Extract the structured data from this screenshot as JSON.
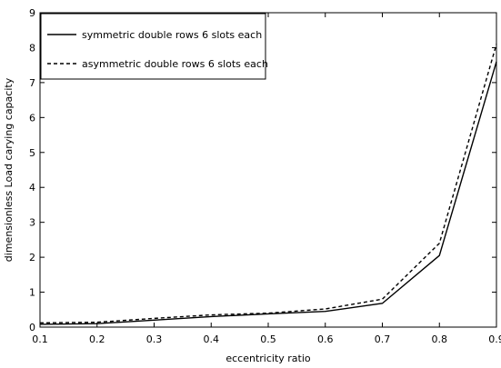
{
  "chart_data": {
    "type": "line",
    "title": "",
    "xlabel": "eccentricity ratio",
    "ylabel": "dimensionless Load carying capacity",
    "xlim": [
      0.1,
      0.9
    ],
    "ylim": [
      0,
      9
    ],
    "xticks": [
      "0.1",
      "0.2",
      "0.3",
      "0.4",
      "0.5",
      "0.6",
      "0.7",
      "0.8",
      "0.9"
    ],
    "yticks": [
      "0",
      "1",
      "2",
      "3",
      "4",
      "5",
      "6",
      "7",
      "8",
      "9"
    ],
    "x": [
      0.1,
      0.2,
      0.3,
      0.4,
      0.5,
      0.6,
      0.7,
      0.8,
      0.9
    ],
    "grid": false,
    "legend_position": "top-left",
    "series": [
      {
        "name": "symmetric double rows 6 slots each",
        "values": [
          0.08,
          0.1,
          0.2,
          0.3,
          0.38,
          0.45,
          0.68,
          2.05,
          7.6
        ],
        "line_style": "solid",
        "color": "#000000"
      },
      {
        "name": "asymmetric double rows 6 slots each",
        "values": [
          0.12,
          0.14,
          0.25,
          0.35,
          0.4,
          0.52,
          0.8,
          2.4,
          8.1
        ],
        "line_style": "dashed",
        "color": "#000000"
      }
    ]
  }
}
